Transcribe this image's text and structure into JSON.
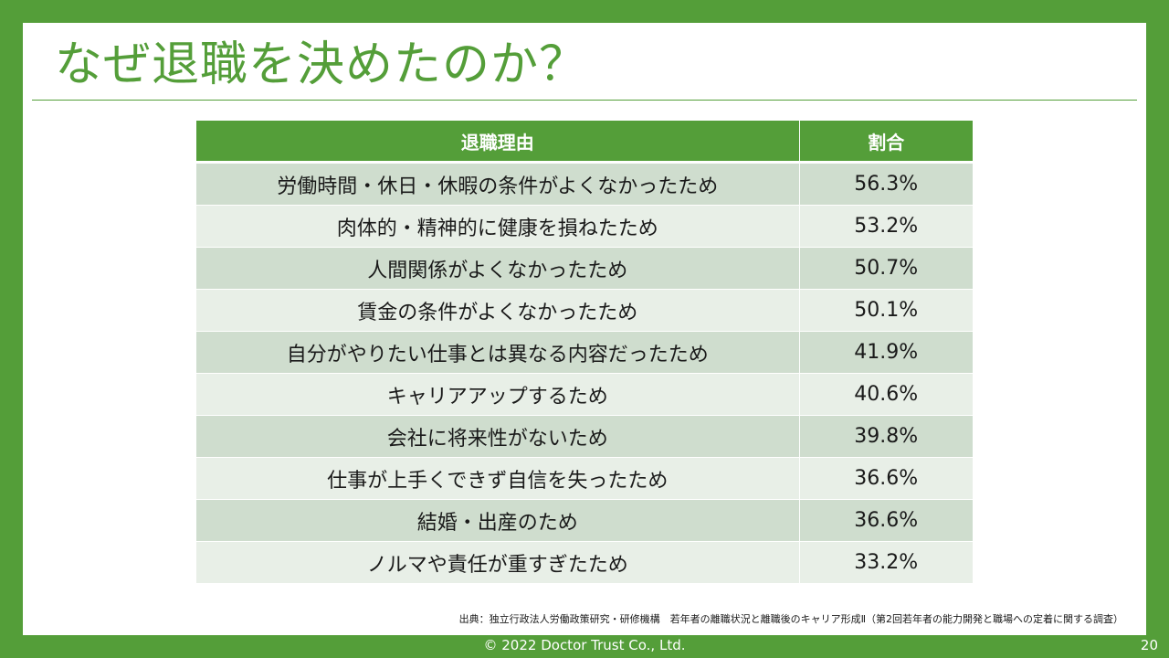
{
  "slide": {
    "title": "なぜ退職を決めたのか？",
    "table": {
      "headers": [
        "退職理由",
        "割合"
      ],
      "rows": [
        {
          "reason": "労働時間・休日・休暇の条件がよくなかったため",
          "ratio": "56.3%"
        },
        {
          "reason": "肉体的・精神的に健康を損ねたため",
          "ratio": "53.2%"
        },
        {
          "reason": "人間関係がよくなかったため",
          "ratio": "50.7%"
        },
        {
          "reason": "賃金の条件がよくなかったため",
          "ratio": "50.1%"
        },
        {
          "reason": "自分がやりたい仕事とは異なる内容だったため",
          "ratio": "41.9%"
        },
        {
          "reason": "キャリアアップするため",
          "ratio": "40.6%"
        },
        {
          "reason": "会社に将来性がないため",
          "ratio": "39.8%"
        },
        {
          "reason": "仕事が上手くできず自信を失ったため",
          "ratio": "36.6%"
        },
        {
          "reason": "結婚・出産のため",
          "ratio": "36.6%"
        },
        {
          "reason": "ノルマや責任が重すぎたため",
          "ratio": "33.2%"
        }
      ]
    },
    "source": "出典：独立行政法人労働政策研究・研修機構　若年者の離職状況と離職後のキャリア形成Ⅱ（第2回若年者の能力開発と職場への定着に関する調査）"
  },
  "footer": {
    "copyright": "© 2022 Doctor Trust Co., Ltd.",
    "page_number": "20"
  },
  "colors": {
    "brand_green": "#549e39",
    "row_dark": "#cfddce",
    "row_light": "#e8efe7",
    "background": "#ffffff"
  }
}
